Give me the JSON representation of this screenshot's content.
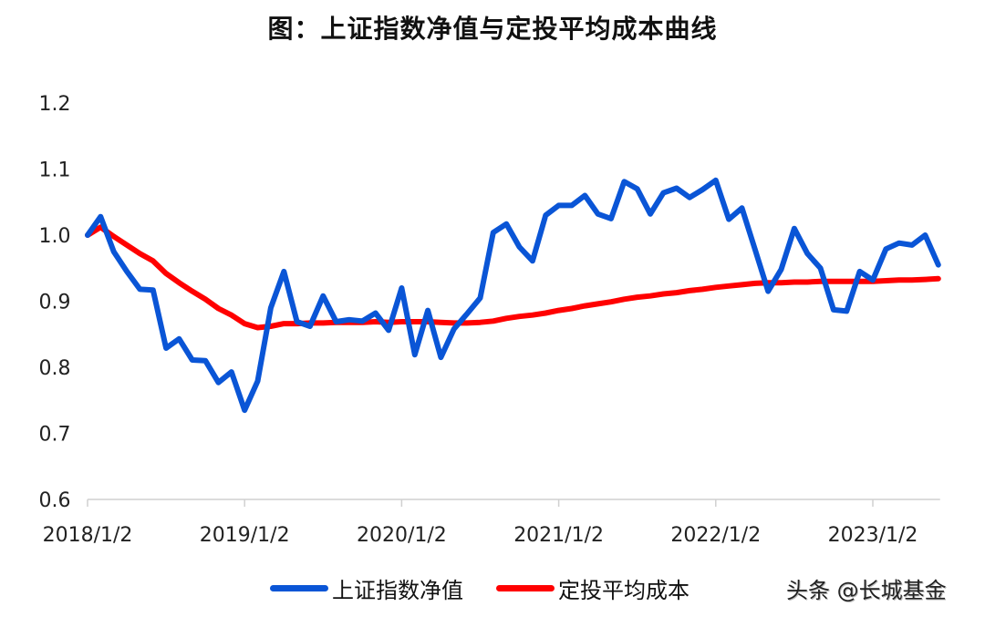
{
  "title": "图：上证指数净值与定投平均成本曲线",
  "watermark": "头条 @长城基金",
  "colors": {
    "series_blue": "#0a55d6",
    "series_red": "#ff0000",
    "axis": "#d0d0d0"
  },
  "legend": [
    {
      "label": "上证指数净值",
      "color": "#0a55d6"
    },
    {
      "label": "定投平均成本",
      "color": "#ff0000"
    }
  ],
  "chart_data": {
    "type": "line",
    "title": "图：上证指数净值与定投平均成本曲线",
    "xlabel": "",
    "ylabel": "",
    "ylim": [
      0.6,
      1.2
    ],
    "yticks": [
      "1.2",
      "1.1",
      "1.0",
      "0.9",
      "0.8",
      "0.7",
      "0.6"
    ],
    "xticks": [
      "2018/1/2",
      "2019/1/2",
      "2020/1/2",
      "2021/1/2",
      "2022/1/2",
      "2023/1/2"
    ],
    "grid": false,
    "legend_position": "bottom",
    "x_start": "2018/1/2",
    "x_end": "2023/6",
    "x_step": "monthly",
    "series": [
      {
        "name": "上证指数净值",
        "color": "#0a55d6",
        "values": [
          1.0,
          1.028,
          0.975,
          0.945,
          0.918,
          0.917,
          0.829,
          0.843,
          0.811,
          0.81,
          0.777,
          0.793,
          0.735,
          0.779,
          0.89,
          0.945,
          0.869,
          0.862,
          0.908,
          0.869,
          0.872,
          0.87,
          0.882,
          0.856,
          0.92,
          0.819,
          0.886,
          0.815,
          0.858,
          0.881,
          0.905,
          1.004,
          1.017,
          0.982,
          0.961,
          1.03,
          1.045,
          1.045,
          1.06,
          1.032,
          1.025,
          1.081,
          1.07,
          1.032,
          1.064,
          1.071,
          1.057,
          1.069,
          1.083,
          1.024,
          1.041,
          0.978,
          0.915,
          0.948,
          1.01,
          0.972,
          0.95,
          0.887,
          0.885,
          0.945,
          0.932,
          0.979,
          0.988,
          0.985,
          1.0,
          0.955
        ]
      },
      {
        "name": "定投平均成本",
        "color": "#ff0000",
        "values": [
          1.0,
          1.012,
          0.998,
          0.985,
          0.972,
          0.961,
          0.942,
          0.928,
          0.915,
          0.903,
          0.889,
          0.879,
          0.866,
          0.86,
          0.862,
          0.866,
          0.866,
          0.867,
          0.867,
          0.868,
          0.868,
          0.868,
          0.869,
          0.868,
          0.869,
          0.869,
          0.869,
          0.868,
          0.867,
          0.867,
          0.868,
          0.87,
          0.874,
          0.877,
          0.879,
          0.882,
          0.886,
          0.889,
          0.893,
          0.896,
          0.899,
          0.903,
          0.906,
          0.908,
          0.911,
          0.913,
          0.916,
          0.918,
          0.921,
          0.923,
          0.925,
          0.927,
          0.928,
          0.928,
          0.929,
          0.929,
          0.93,
          0.93,
          0.93,
          0.93,
          0.93,
          0.931,
          0.932,
          0.932,
          0.933,
          0.934
        ]
      }
    ]
  }
}
